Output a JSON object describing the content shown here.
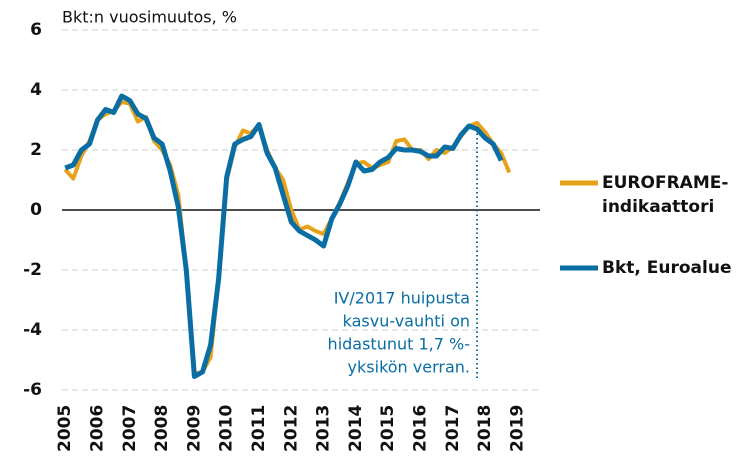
{
  "chart_data": {
    "type": "line",
    "title": "Bkt:n vuosimuutos, %",
    "x": [
      2005,
      2005.25,
      2005.5,
      2005.75,
      2006,
      2006.25,
      2006.5,
      2006.75,
      2007,
      2007.25,
      2007.5,
      2007.75,
      2008,
      2008.25,
      2008.5,
      2008.75,
      2009,
      2009.25,
      2009.5,
      2009.75,
      2010,
      2010.25,
      2010.5,
      2010.75,
      2011,
      2011.25,
      2011.5,
      2011.75,
      2012,
      2012.25,
      2012.5,
      2012.75,
      2013,
      2013.25,
      2013.5,
      2013.75,
      2014,
      2014.25,
      2014.5,
      2014.75,
      2015,
      2015.25,
      2015.5,
      2015.75,
      2016,
      2016.25,
      2016.5,
      2016.75,
      2017,
      2017.25,
      2017.5,
      2017.75,
      2018,
      2018.25,
      2018.5,
      2018.75
    ],
    "series": [
      {
        "name": "EUROFRAME-indikaattori",
        "color": "#e8a21a",
        "values": [
          1.35,
          1.05,
          1.8,
          2.3,
          3.0,
          3.2,
          3.3,
          3.6,
          3.55,
          2.95,
          3.1,
          2.3,
          2.0,
          1.5,
          0.5,
          -2.0,
          -5.45,
          -5.4,
          -4.9,
          -2.3,
          1.0,
          2.1,
          2.65,
          2.55,
          2.85,
          2.0,
          1.4,
          1.0,
          0.0,
          -0.65,
          -0.55,
          -0.7,
          -0.8,
          -0.3,
          0.25,
          0.9,
          1.55,
          1.6,
          1.4,
          1.5,
          1.6,
          2.3,
          2.35,
          2.0,
          2.0,
          1.7,
          2.0,
          1.9,
          2.1,
          2.45,
          2.8,
          2.9,
          2.6,
          2.2,
          1.9,
          1.25
        ]
      },
      {
        "name": "Bkt, Euroalue",
        "color": "#0a6ea4",
        "values": [
          1.4,
          1.5,
          2.0,
          2.2,
          3.0,
          3.35,
          3.25,
          3.8,
          3.65,
          3.2,
          3.05,
          2.4,
          2.2,
          1.3,
          0.1,
          -2.0,
          -5.55,
          -5.4,
          -4.5,
          -2.3,
          1.1,
          2.2,
          2.35,
          2.45,
          2.85,
          1.9,
          1.4,
          0.5,
          -0.4,
          -0.7,
          -0.85,
          -1.0,
          -1.2,
          -0.3,
          0.2,
          0.8,
          1.6,
          1.3,
          1.35,
          1.6,
          1.75,
          2.05,
          2.0,
          2.0,
          1.95,
          1.8,
          1.8,
          2.1,
          2.05,
          2.5,
          2.8,
          2.7,
          2.4,
          2.2,
          1.65,
          null
        ]
      }
    ],
    "annotation": [
      "IV/2017 huipusta",
      "kasvu-vauhti on",
      "hidastunut 1,7 %-",
      "yksikön verran."
    ],
    "xlim": [
      2004.9,
      2019.7
    ],
    "xticks": [
      2005,
      2006,
      2007,
      2008,
      2009,
      2010,
      2011,
      2012,
      2013,
      2014,
      2015,
      2016,
      2017,
      2018,
      2019
    ],
    "ylim": [
      -6,
      6
    ],
    "yticks": [
      -6,
      -4,
      -2,
      0,
      2,
      4,
      6
    ],
    "grid": true
  }
}
